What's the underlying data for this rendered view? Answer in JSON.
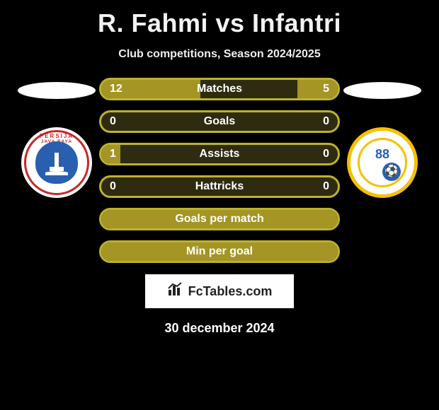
{
  "title": "R. Fahmi vs Infantri",
  "subtitle": "Club competitions, Season 2024/2025",
  "colors": {
    "olive": "#a49524",
    "olive_dark": "#6f6a22",
    "olive_border": "#bbb22f",
    "background": "#000000",
    "white": "#ffffff"
  },
  "left_badge": {
    "top_text": "PERSIJA",
    "sub_text": "JAVA  RAYA"
  },
  "right_badge": {
    "number": "88"
  },
  "bars": [
    {
      "label": "Matches",
      "left_val": "12",
      "right_val": "5",
      "left_pct": 42,
      "right_pct": 17,
      "fill_left_color": "#a49524",
      "fill_right_color": "#a49524",
      "border_color": "#bbb22f"
    },
    {
      "label": "Goals",
      "left_val": "0",
      "right_val": "0",
      "left_pct": 0,
      "right_pct": 0,
      "fill_left_color": "#a49524",
      "fill_right_color": "#a49524",
      "border_color": "#bbb22f"
    },
    {
      "label": "Assists",
      "left_val": "1",
      "right_val": "0",
      "left_pct": 8,
      "right_pct": 0,
      "fill_left_color": "#a49524",
      "fill_right_color": "#a49524",
      "border_color": "#bbb22f"
    },
    {
      "label": "Hattricks",
      "left_val": "0",
      "right_val": "0",
      "left_pct": 0,
      "right_pct": 0,
      "fill_left_color": "#a49524",
      "fill_right_color": "#a49524",
      "border_color": "#bbb22f"
    },
    {
      "label": "Goals per match",
      "left_val": "",
      "right_val": "",
      "left_pct": 100,
      "right_pct": 0,
      "fill_left_color": "#a49524",
      "fill_right_color": "#a49524",
      "border_color": "#bbb22f",
      "full": true
    },
    {
      "label": "Min per goal",
      "left_val": "",
      "right_val": "",
      "left_pct": 100,
      "right_pct": 0,
      "fill_left_color": "#a49524",
      "fill_right_color": "#a49524",
      "border_color": "#bbb22f",
      "full": true
    }
  ],
  "footer_logo_text": "FcTables.com",
  "footer_date": "30 december 2024"
}
